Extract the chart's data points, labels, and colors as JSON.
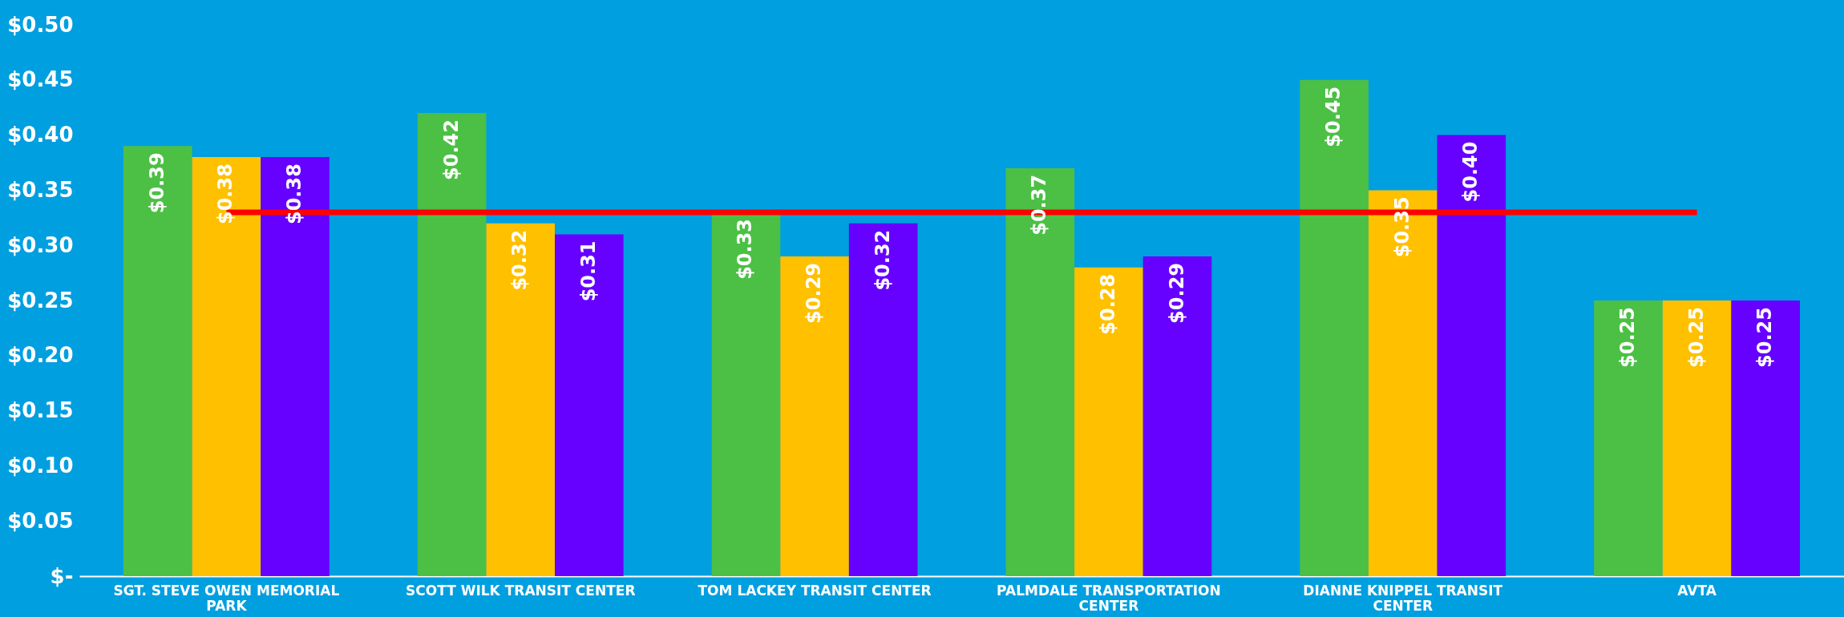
{
  "chart_data": {
    "type": "bar",
    "categories": [
      "SGT. STEVE OWEN MEMORIAL PARK",
      "SCOTT WILK TRANSIT CENTER",
      "TOM LACKEY TRANSIT CENTER",
      "PALMDALE TRANSPORTATION CENTER",
      "DIANNE KNIPPEL TRANSIT CENTER",
      "AVTA"
    ],
    "series": [
      {
        "color": "#4cc045",
        "values": [
          0.39,
          0.42,
          0.33,
          0.37,
          0.45,
          0.25
        ],
        "value_labels": [
          "$0.39",
          "$0.42",
          "$0.33",
          "$0.37",
          "$0.45",
          "$0.25"
        ]
      },
      {
        "color": "#ffc000",
        "values": [
          0.38,
          0.32,
          0.29,
          0.28,
          0.35,
          0.25
        ],
        "value_labels": [
          "$0.38",
          "$0.32",
          "$0.29",
          "$0.28",
          "$0.35",
          "$0.25"
        ]
      },
      {
        "color": "#6600ff",
        "values": [
          0.38,
          0.31,
          0.32,
          0.29,
          0.4,
          0.25
        ],
        "value_labels": [
          "$0.38",
          "$0.31",
          "$0.32",
          "$0.29",
          "$0.40",
          "$0.25"
        ]
      }
    ],
    "ylim": [
      0,
      0.5
    ],
    "yticks": [
      {
        "value": 0,
        "label": "$-"
      },
      {
        "value": 0.05,
        "label": "$0.05"
      },
      {
        "value": 0.1,
        "label": "$0.10"
      },
      {
        "value": 0.15,
        "label": "$0.15"
      },
      {
        "value": 0.2,
        "label": "$0.20"
      },
      {
        "value": 0.25,
        "label": "$0.25"
      },
      {
        "value": 0.3,
        "label": "$0.30"
      },
      {
        "value": 0.35,
        "label": "$0.35"
      },
      {
        "value": 0.4,
        "label": "$0.40"
      },
      {
        "value": 0.45,
        "label": "$0.45"
      },
      {
        "value": 0.5,
        "label": "$0.50"
      }
    ],
    "ref_lines": [
      {
        "axis": "y",
        "value": 0.33,
        "color": "#ff0000"
      }
    ],
    "grid": false
  }
}
